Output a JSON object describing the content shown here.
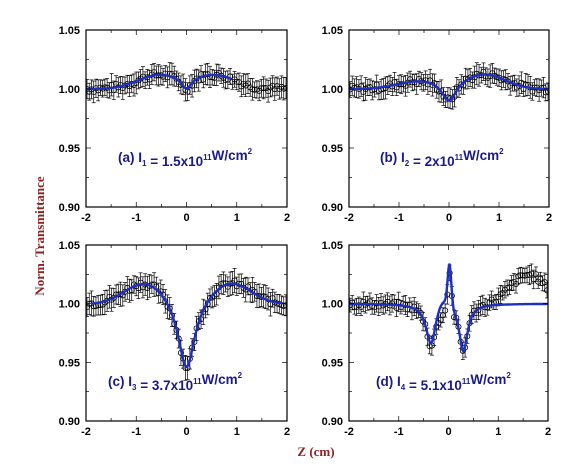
{
  "ylabel": "Norm. Transmittance",
  "xlabel": "Z (cm)",
  "chart_data": [
    {
      "type": "scatter",
      "panel_label": "(a)",
      "intensity_symbol": "I",
      "intensity_subscript": "1",
      "intensity_value": "1.5x10",
      "intensity_exponent": "11",
      "intensity_unit": "W/cm",
      "intensity_unit_exponent": "2",
      "xlim": [
        -2,
        2
      ],
      "ylim": [
        0.9,
        1.05
      ],
      "xticks": [
        -2,
        -1,
        0,
        1,
        2
      ],
      "yticks": [
        0.9,
        0.95,
        1.0,
        1.05
      ],
      "x_tick_labels": [
        "-2",
        "-1",
        "0",
        "1",
        "2"
      ],
      "y_tick_labels": [
        "0.90",
        "0.95",
        "1.00",
        "1.05"
      ],
      "show_y_tick_labels": true,
      "show_x_tick_labels": true,
      "profile": {
        "baseline": 1.0,
        "peaks": [
          {
            "x0": -0.55,
            "amp": 0.012,
            "w": 0.6
          },
          {
            "x0": 0.55,
            "amp": 0.012,
            "w": 0.6
          }
        ],
        "dips": [
          {
            "x0": 0.0,
            "amp": 0.01,
            "w": 0.12
          }
        ]
      },
      "noise": 0.003,
      "err": 0.008,
      "fit_range": [
        -2,
        0.9
      ],
      "exp_profile": null
    },
    {
      "type": "scatter",
      "panel_label": "(b)",
      "intensity_symbol": "I",
      "intensity_subscript": "2",
      "intensity_value": "2x10",
      "intensity_exponent": "11",
      "intensity_unit": "W/cm",
      "intensity_unit_exponent": "2",
      "xlim": [
        -2,
        2
      ],
      "ylim": [
        0.9,
        1.05
      ],
      "xticks": [
        -2,
        -1,
        0,
        1,
        2
      ],
      "yticks": [
        0.9,
        0.95,
        1.0,
        1.05
      ],
      "x_tick_labels": [
        "-2",
        "-1",
        "0",
        "1",
        "2"
      ],
      "y_tick_labels": [
        "0.90",
        "0.95",
        "1.00",
        "1.05"
      ],
      "show_y_tick_labels": true,
      "show_x_tick_labels": true,
      "profile": {
        "baseline": 1.0,
        "peaks": [
          {
            "x0": -0.5,
            "amp": 0.008,
            "w": 0.7
          },
          {
            "x0": 0.7,
            "amp": 0.013,
            "w": 0.6
          }
        ],
        "dips": [
          {
            "x0": 0.0,
            "amp": 0.018,
            "w": 0.18
          }
        ]
      },
      "noise": 0.003,
      "err": 0.008,
      "fit_range": [
        -2,
        2
      ],
      "exp_profile": null
    },
    {
      "type": "scatter",
      "panel_label": "(c)",
      "intensity_symbol": "I",
      "intensity_subscript": "3",
      "intensity_value": "3.7x10",
      "intensity_exponent": "11",
      "intensity_unit": "W/cm",
      "intensity_unit_exponent": "2",
      "xlim": [
        -2,
        2
      ],
      "ylim": [
        0.9,
        1.05
      ],
      "xticks": [
        -2,
        -1,
        0,
        1,
        2
      ],
      "yticks": [
        0.9,
        0.95,
        1.0,
        1.05
      ],
      "x_tick_labels": [
        "-2",
        "-1",
        "0",
        "1",
        "2"
      ],
      "y_tick_labels": [
        "0.90",
        "0.95",
        "1.00",
        "1.05"
      ],
      "show_y_tick_labels": true,
      "show_x_tick_labels": true,
      "profile": {
        "baseline": 1.0,
        "peaks": [
          {
            "x0": -0.8,
            "amp": 0.02,
            "w": 0.6
          },
          {
            "x0": 0.85,
            "amp": 0.02,
            "w": 0.6
          }
        ],
        "dips": [
          {
            "x0": 0.0,
            "amp": 0.06,
            "w": 0.2
          }
        ]
      },
      "noise": 0.003,
      "err": 0.009,
      "fit_range": [
        -1.9,
        1.9
      ],
      "exp_profile": null
    },
    {
      "type": "scatter",
      "panel_label": "(d)",
      "intensity_symbol": "I",
      "intensity_subscript": "4",
      "intensity_value": "5.1x10",
      "intensity_exponent": "11",
      "intensity_unit": "W/cm",
      "intensity_unit_exponent": "2",
      "xlim": [
        -2,
        2
      ],
      "ylim": [
        0.9,
        1.05
      ],
      "xticks": [
        -2,
        -1,
        0,
        1,
        2
      ],
      "yticks": [
        0.9,
        0.95,
        1.0,
        1.05
      ],
      "x_tick_labels": [
        "-2",
        "-1",
        "0",
        "1",
        "2"
      ],
      "y_tick_labels": [
        "0.90",
        "0.95",
        "1.00",
        "1.05"
      ],
      "show_y_tick_labels": true,
      "show_x_tick_labels": true,
      "profile": {
        "baseline": 1.0,
        "peaks": [
          {
            "x0": -0.1,
            "amp": 0.01,
            "w": 0.2
          },
          {
            "x0": 0.02,
            "amp": 0.035,
            "w": 0.05
          }
        ],
        "dips": [
          {
            "x0": -0.35,
            "amp": 0.035,
            "w": 0.12
          },
          {
            "x0": 0.3,
            "amp": 0.04,
            "w": 0.1
          }
        ]
      },
      "noise": 0.003,
      "err": 0.007,
      "fit_range": [
        -2,
        2
      ],
      "exp_profile": {
        "baseline": 1.0,
        "peaks": [
          {
            "x0": 1.6,
            "amp": 0.025,
            "w": 0.5
          },
          {
            "x0": 0.02,
            "amp": 0.035,
            "w": 0.05
          }
        ],
        "dips": [
          {
            "x0": -0.35,
            "amp": 0.035,
            "w": 0.12
          },
          {
            "x0": 0.3,
            "amp": 0.04,
            "w": 0.1
          }
        ]
      }
    }
  ]
}
